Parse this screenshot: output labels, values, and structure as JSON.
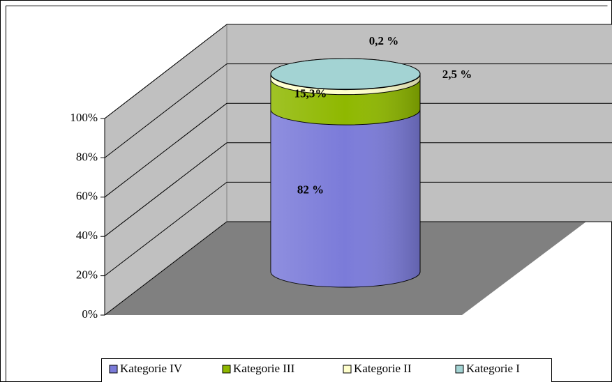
{
  "chart_data": {
    "type": "bar",
    "stacked": true,
    "series": [
      {
        "name": "Kategorie IV",
        "color": "#7b7bd9",
        "values": [
          82
        ],
        "value_labels": [
          "82 %"
        ]
      },
      {
        "name": "Kategorie III",
        "color": "#8fb800",
        "values": [
          15.3
        ],
        "value_labels": [
          "15,3%"
        ]
      },
      {
        "name": "Kategorie II",
        "color": "#ffffcc",
        "values": [
          2.5
        ],
        "value_labels": [
          "2,5 %"
        ]
      },
      {
        "name": "Kategorie I",
        "color": "#a3d3d3",
        "values": [
          0.2
        ],
        "value_labels": [
          "0,2 %"
        ]
      }
    ],
    "ylim": [
      0,
      100
    ],
    "yticks": [
      {
        "value": 0,
        "label": "0%"
      },
      {
        "value": 20,
        "label": "20%"
      },
      {
        "value": 40,
        "label": "40%"
      },
      {
        "value": 60,
        "label": "60%"
      },
      {
        "value": 80,
        "label": "80%"
      },
      {
        "value": 100,
        "label": "100%"
      }
    ],
    "grid": true,
    "legend": "bottom"
  }
}
